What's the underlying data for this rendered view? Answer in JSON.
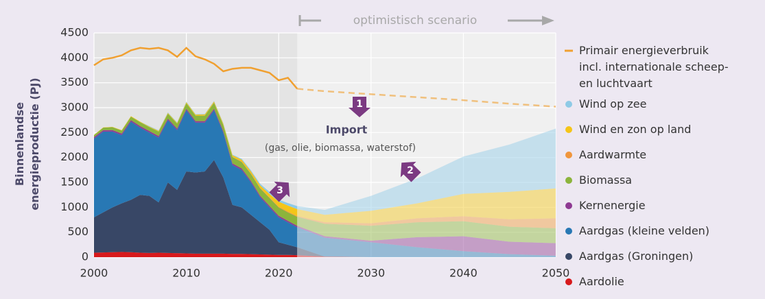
{
  "chart_data": {
    "type": "stacked_area",
    "header": "optimistisch scenario",
    "y_label_lines": [
      "Binnenlandse",
      "energieproductie (PJ)"
    ],
    "annotations": {
      "import_title": "Import",
      "import_detail": "(gas, olie, biomassa, waterstof)",
      "marker_1": "1",
      "marker_2": "2",
      "marker_3": "3"
    },
    "scenario_start": 2022,
    "x": [
      2000,
      2001,
      2002,
      2003,
      2004,
      2005,
      2006,
      2007,
      2008,
      2009,
      2010,
      2011,
      2012,
      2013,
      2014,
      2015,
      2016,
      2017,
      2018,
      2019,
      2020,
      2021,
      2022,
      2025,
      2030,
      2035,
      2040,
      2045,
      2050
    ],
    "xlim": [
      2000,
      2050
    ],
    "xticks": [
      2000,
      2010,
      2020,
      2030,
      2040,
      2050
    ],
    "ylim": [
      0,
      4500
    ],
    "yticks": [
      0,
      500,
      1000,
      1500,
      2000,
      2500,
      3000,
      3500,
      4000,
      4500
    ],
    "grid": true,
    "line": {
      "name": "Primair energieverbruik\nincl. internationale scheep-\nen luchtvaart",
      "color": "#f0a030",
      "values": [
        3850,
        3970,
        4000,
        4050,
        4150,
        4200,
        4180,
        4200,
        4150,
        4020,
        4200,
        4030,
        3970,
        3880,
        3730,
        3780,
        3800,
        3800,
        3750,
        3700,
        3550,
        3600,
        3380,
        3330,
        3270,
        3210,
        3150,
        3080,
        3020
      ]
    },
    "series": [
      {
        "name": "Aardolie",
        "color": "#d7191c",
        "values": [
          90,
          95,
          100,
          105,
          100,
          90,
          85,
          90,
          85,
          80,
          75,
          70,
          70,
          70,
          70,
          65,
          65,
          60,
          55,
          50,
          45,
          45,
          40,
          10,
          0,
          0,
          0,
          0,
          0
        ]
      },
      {
        "name": "Aardgas (Groningen)",
        "color": "#384766",
        "values": [
          710,
          805,
          900,
          975,
          1050,
          1160,
          1145,
          1010,
          1415,
          1270,
          1645,
          1630,
          1650,
          1880,
          1530,
          985,
          935,
          790,
          645,
          500,
          255,
          205,
          160,
          0,
          0,
          0,
          0,
          0,
          0
        ]
      },
      {
        "name": "Aardgas (kleine velden)",
        "color": "#2878b4",
        "values": [
          1580,
          1620,
          1520,
          1370,
          1570,
          1350,
          1270,
          1300,
          1250,
          1200,
          1230,
          1000,
          980,
          1000,
          900,
          800,
          750,
          650,
          500,
          450,
          500,
          450,
          400,
          380,
          300,
          200,
          120,
          60,
          30
        ]
      },
      {
        "name": "Kernenergie",
        "color": "#8e3a92",
        "values": [
          30,
          30,
          30,
          30,
          30,
          30,
          30,
          30,
          30,
          30,
          30,
          30,
          30,
          30,
          30,
          30,
          30,
          30,
          30,
          30,
          30,
          30,
          30,
          30,
          30,
          200,
          300,
          250,
          250
        ]
      },
      {
        "name": "Biomassa",
        "color": "#8cb43c",
        "values": [
          40,
          50,
          60,
          60,
          70,
          80,
          80,
          90,
          100,
          100,
          110,
          110,
          110,
          120,
          120,
          130,
          130,
          140,
          150,
          160,
          170,
          170,
          180,
          250,
          300,
          300,
          300,
          300,
          300
        ]
      },
      {
        "name": "Aardwarmte",
        "color": "#f0963c",
        "values": [
          0,
          0,
          0,
          0,
          0,
          0,
          0,
          0,
          0,
          0,
          0,
          0,
          5,
          5,
          5,
          5,
          10,
          10,
          10,
          10,
          15,
          15,
          15,
          30,
          50,
          80,
          100,
          150,
          200
        ]
      },
      {
        "name": "Wind en zon op land",
        "color": "#f5c518",
        "values": [
          5,
          5,
          5,
          10,
          10,
          10,
          10,
          15,
          15,
          15,
          20,
          20,
          20,
          20,
          25,
          30,
          35,
          40,
          50,
          70,
          100,
          120,
          140,
          150,
          250,
          300,
          450,
          550,
          600
        ]
      },
      {
        "name": "Wind op zee",
        "color": "#8ecae6",
        "values": [
          0,
          0,
          0,
          0,
          0,
          0,
          10,
          10,
          10,
          10,
          10,
          10,
          10,
          10,
          10,
          10,
          20,
          20,
          30,
          40,
          40,
          50,
          60,
          100,
          300,
          500,
          750,
          950,
          1200
        ]
      }
    ]
  }
}
